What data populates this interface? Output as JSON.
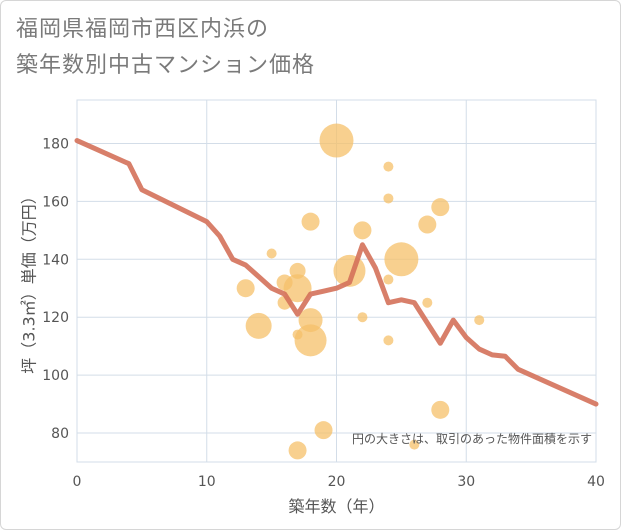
{
  "title": [
    "福岡県福岡市西区内浜の",
    "築年数別中古マンション価格"
  ],
  "chart_data": {
    "type": "scatter",
    "xlabel": "築年数（年）",
    "ylabel": "坪（3.3㎡）単価（万円）",
    "xlim": [
      0,
      40
    ],
    "ylim": [
      70,
      195
    ],
    "xticks": [
      0,
      10,
      20,
      30,
      40
    ],
    "yticks": [
      80,
      100,
      120,
      140,
      160,
      180
    ],
    "grid": true,
    "note": "円の大きさは、取引のあった物件面積を示す",
    "colors": {
      "bubble": "#f5c06a",
      "line": "#d4715a",
      "grid": "#d3dde8"
    },
    "bubbles": [
      {
        "x": 13,
        "y": 130,
        "r": 9
      },
      {
        "x": 14,
        "y": 117,
        "r": 13
      },
      {
        "x": 15,
        "y": 142,
        "r": 5
      },
      {
        "x": 16,
        "y": 132,
        "r": 8
      },
      {
        "x": 16,
        "y": 125,
        "r": 7
      },
      {
        "x": 17,
        "y": 136,
        "r": 8
      },
      {
        "x": 17,
        "y": 130,
        "r": 14
      },
      {
        "x": 17,
        "y": 114,
        "r": 5
      },
      {
        "x": 17,
        "y": 74,
        "r": 9
      },
      {
        "x": 18,
        "y": 153,
        "r": 9
      },
      {
        "x": 18,
        "y": 119,
        "r": 12
      },
      {
        "x": 18,
        "y": 112,
        "r": 16
      },
      {
        "x": 19,
        "y": 81,
        "r": 9
      },
      {
        "x": 20,
        "y": 181,
        "r": 17
      },
      {
        "x": 21,
        "y": 136,
        "r": 16
      },
      {
        "x": 22,
        "y": 150,
        "r": 9
      },
      {
        "x": 22,
        "y": 120,
        "r": 5
      },
      {
        "x": 24,
        "y": 172,
        "r": 5
      },
      {
        "x": 24,
        "y": 161,
        "r": 5
      },
      {
        "x": 24,
        "y": 133,
        "r": 5
      },
      {
        "x": 24,
        "y": 112,
        "r": 5
      },
      {
        "x": 25,
        "y": 140,
        "r": 17
      },
      {
        "x": 26,
        "y": 76,
        "r": 5
      },
      {
        "x": 27,
        "y": 152,
        "r": 9
      },
      {
        "x": 27,
        "y": 125,
        "r": 5
      },
      {
        "x": 28,
        "y": 158,
        "r": 9
      },
      {
        "x": 28,
        "y": 88,
        "r": 9
      },
      {
        "x": 31,
        "y": 119,
        "r": 5
      }
    ],
    "line": {
      "x": [
        0,
        4,
        5,
        10,
        11,
        12,
        13,
        14,
        15,
        16,
        17,
        18,
        19,
        20,
        21,
        22,
        23,
        24,
        25,
        26,
        27,
        28,
        29,
        30,
        31,
        32,
        33,
        34,
        40
      ],
      "y": [
        181,
        173,
        164,
        153,
        148,
        140,
        138,
        134,
        130,
        128,
        121,
        128,
        129,
        130,
        132,
        145,
        137,
        125,
        126,
        125,
        118,
        111,
        119,
        113,
        109,
        107,
        106.5,
        102,
        90
      ]
    }
  }
}
